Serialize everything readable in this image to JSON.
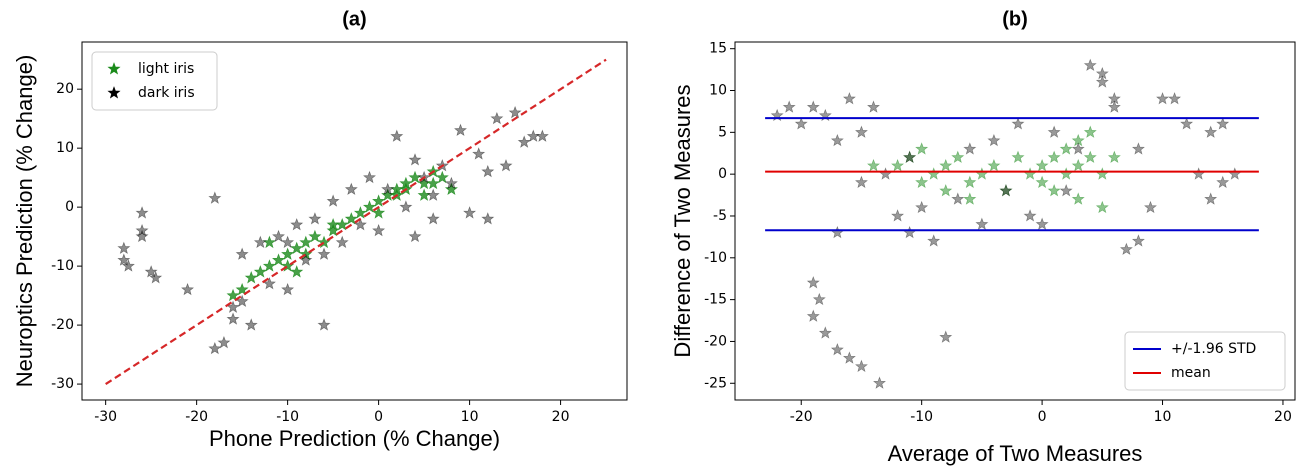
{
  "chart_data": [
    {
      "type": "scatter",
      "title": "(a)",
      "x_label": "Phone Prediction (% Change)",
      "y_label": "Neuroptics Prediction (% Change)",
      "xlim": [
        -32.6,
        27.3
      ],
      "xticks": [
        -30,
        -20,
        -10,
        0,
        10,
        20
      ],
      "ylim": [
        -32.7,
        28
      ],
      "yticks": [
        -30,
        -20,
        -10,
        0,
        10,
        20
      ],
      "legend": "upper left",
      "series": [
        {
          "name": "light iris",
          "color": "#1a8a1a",
          "alpha": 0.8,
          "x": [
            -16,
            -15,
            -14,
            -13,
            -12,
            -11,
            -10,
            -10,
            -9,
            -8,
            -8,
            -7,
            -6,
            -5,
            -5,
            -4,
            -3,
            -2,
            -1,
            0,
            0,
            1,
            2,
            2,
            3,
            3,
            4,
            5,
            5,
            6,
            6,
            7,
            8,
            -12,
            -9
          ],
          "values": [
            -15,
            -14,
            -12,
            -11,
            -10,
            -9,
            -8,
            -10,
            -7,
            -6,
            -8,
            -5,
            -6,
            -4,
            -3,
            -3,
            -2,
            -1,
            0,
            1,
            -1,
            2,
            2,
            3,
            4,
            3,
            5,
            4,
            2,
            6,
            4,
            5,
            3,
            -6,
            -11
          ]
        },
        {
          "name": "dark iris",
          "color": "#000000",
          "alpha": 0.45,
          "x": [
            -28,
            -28,
            -27.5,
            -26,
            -26,
            -26,
            -25,
            -24.5,
            -21,
            -18,
            -18,
            -17,
            -16,
            -16,
            -15,
            -15,
            -14,
            -13,
            -12,
            -11,
            -10,
            -9,
            -8,
            -7,
            -6,
            -5,
            -4,
            -3,
            -2,
            -1,
            0,
            1,
            2,
            3,
            4,
            5,
            6,
            7,
            8,
            9,
            10,
            11,
            12,
            12,
            13,
            14,
            15,
            16,
            17,
            18,
            -10,
            -6,
            4,
            6
          ],
          "values": [
            -7,
            -9,
            -10,
            -1,
            -4,
            -5,
            -11,
            -12,
            -14,
            1.5,
            -24,
            -23,
            -19,
            -17,
            -16,
            -8,
            -20,
            -6,
            -13,
            -5,
            -14,
            -3,
            -9,
            -2,
            -8,
            1,
            -6,
            3,
            -3,
            5,
            -4,
            3,
            12,
            0,
            8,
            5,
            -2,
            7,
            4,
            13,
            -1,
            9,
            -2,
            6,
            15,
            7,
            16,
            11,
            12,
            12,
            -6,
            -20,
            -5,
            2
          ]
        }
      ],
      "reference_line": {
        "color": "#d62728",
        "x": [
          -30,
          25
        ],
        "y": [
          -30,
          25
        ]
      }
    },
    {
      "type": "scatter",
      "title": "(b)",
      "x_label": "Average of Two Measures",
      "y_label": "Difference of Two Measures",
      "xlim": [
        -25.5,
        21
      ],
      "xticks": [
        -20,
        -10,
        0,
        10,
        20
      ],
      "ylim": [
        -27,
        15.8
      ],
      "yticks": [
        -25,
        -20,
        -15,
        -10,
        -5,
        0,
        5,
        10,
        15
      ],
      "legend": "lower right",
      "series": [
        {
          "color": "#1a8a1a",
          "alpha": 0.5,
          "x": [
            -12,
            -11,
            -10,
            -9,
            -8,
            -8,
            -7,
            -6,
            -5,
            -4,
            -3,
            -2,
            -1,
            0,
            0,
            1,
            1,
            2,
            2,
            3,
            3,
            4,
            4,
            5,
            5,
            6,
            -14,
            -10,
            -6,
            3
          ],
          "values": [
            1,
            2,
            -1,
            0,
            -2,
            1,
            2,
            -1,
            0,
            1,
            -2,
            2,
            0,
            1,
            -1,
            2,
            -2,
            0,
            3,
            1,
            -3,
            2,
            5,
            0,
            -4,
            2,
            1,
            3,
            -3,
            4
          ]
        },
        {
          "color": "#000000",
          "alpha": 0.4,
          "x": [
            -22,
            -21,
            -20,
            -19,
            -18,
            -17,
            -16,
            -15,
            -15,
            -14,
            -13,
            -12,
            -11,
            -10,
            -9,
            -8,
            -19,
            -18.5,
            -19,
            -18,
            -17,
            -16,
            -15,
            -13.5,
            -7,
            -6,
            -5,
            -4,
            -3,
            -2,
            -1,
            0,
            1,
            2,
            3,
            4,
            5,
            5,
            6,
            6,
            7,
            8,
            9,
            10,
            11,
            12,
            13,
            14,
            14,
            15,
            15,
            16,
            -17,
            -11,
            8
          ],
          "values": [
            7,
            8,
            6,
            8,
            7,
            4,
            9,
            -1,
            5,
            8,
            0,
            -5,
            2,
            -4,
            -8,
            -19.5,
            -13,
            -15,
            -17,
            -19,
            -21,
            -22,
            -23,
            -25,
            -3,
            3,
            -6,
            4,
            -2,
            6,
            -5,
            -6,
            5,
            -2,
            3,
            13,
            12,
            11,
            8,
            9,
            -9,
            3,
            -4,
            9,
            9,
            6,
            0,
            -3,
            5,
            -1,
            6,
            0,
            -7,
            -7,
            -8
          ]
        }
      ],
      "hline_xlim": [
        -23,
        18
      ],
      "hlines": [
        {
          "name": "+/-1.96 STD",
          "color": "#0000cc",
          "values": [
            6.7,
            -6.7
          ]
        },
        {
          "name": "mean",
          "color": "#e00000",
          "values": [
            0.3
          ]
        }
      ]
    }
  ]
}
